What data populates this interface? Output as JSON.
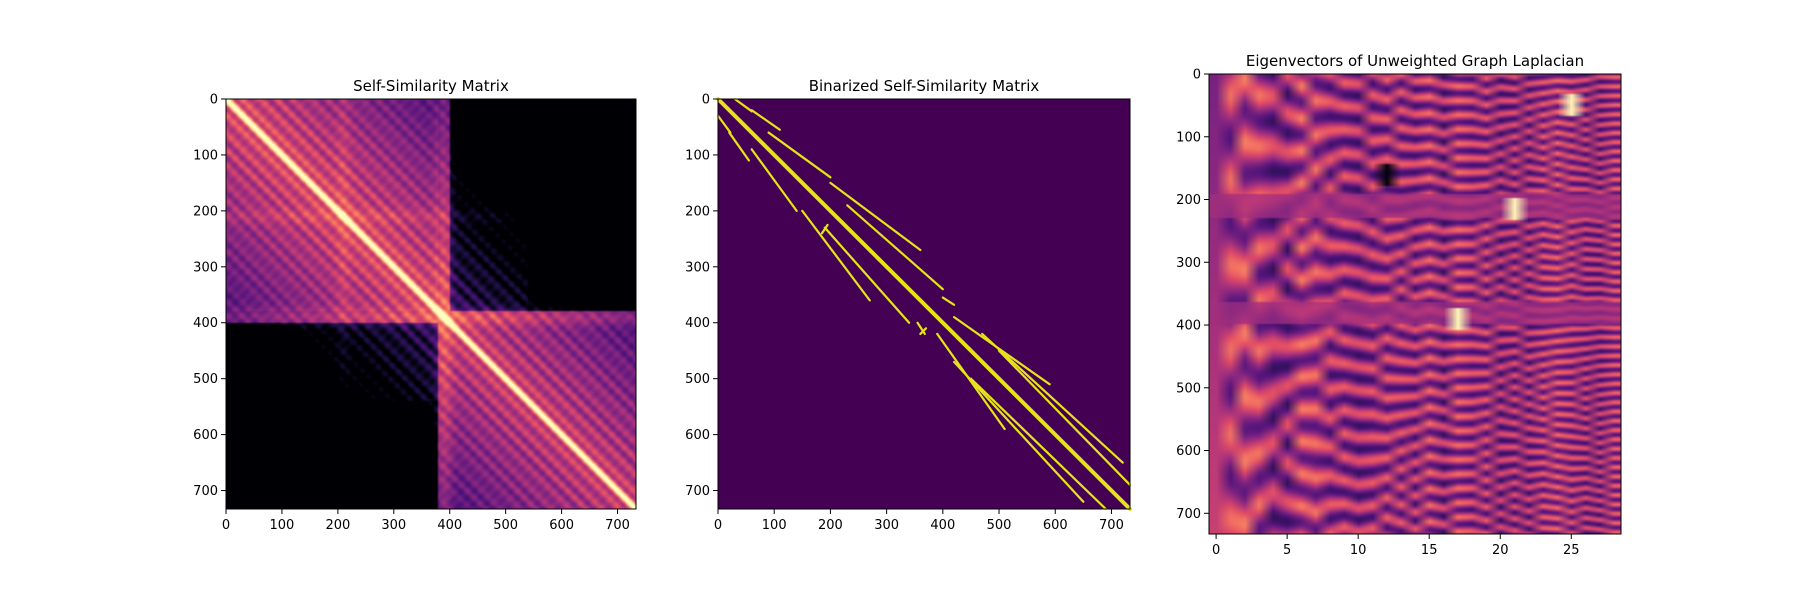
{
  "colors": {
    "magma": [
      "#000004",
      "#1c1044",
      "#4f127b",
      "#812581",
      "#b5367a",
      "#e55064",
      "#fb8761",
      "#fec287",
      "#fcfdbf"
    ],
    "binary_background": "#440154",
    "binary_foreground": "#e5e419",
    "axis": "#000000"
  },
  "chart_data": [
    {
      "type": "heatmap",
      "title": "Self-Similarity Matrix",
      "colormap": "magma",
      "size": 733,
      "xlim": [
        0,
        733
      ],
      "ylim": [
        733,
        0
      ],
      "x_ticks": [
        0,
        100,
        200,
        300,
        400,
        500,
        600,
        700
      ],
      "y_ticks": [
        0,
        100,
        200,
        300,
        400,
        500,
        600,
        700
      ],
      "x_tick_labels": [
        "0",
        "100",
        "200",
        "300",
        "400",
        "500",
        "600",
        "700"
      ],
      "y_tick_labels": [
        "0",
        "100",
        "200",
        "300",
        "400",
        "500",
        "600",
        "700"
      ],
      "xlabel": "",
      "ylabel": "",
      "structure": {
        "bright_diagonal": true,
        "secondary_diagonals_offsets": [
          -150,
          -110,
          -60,
          -30,
          30,
          60,
          110,
          150
        ],
        "bright_cross_at": 390,
        "dark_blocks": [
          {
            "rows": [
              0,
              380
            ],
            "cols": [
              400,
              733
            ]
          },
          {
            "rows": [
              400,
              733
            ],
            "cols": [
              0,
              380
            ]
          }
        ]
      }
    },
    {
      "type": "heatmap",
      "title": "Binarized Self-Similarity Matrix",
      "colormap": "viridis-binary",
      "size": 733,
      "xlim": [
        0,
        733
      ],
      "ylim": [
        733,
        0
      ],
      "x_ticks": [
        0,
        100,
        200,
        300,
        400,
        500,
        600,
        700
      ],
      "y_ticks": [
        0,
        100,
        200,
        300,
        400,
        500,
        600,
        700
      ],
      "x_tick_labels": [
        "0",
        "100",
        "200",
        "300",
        "400",
        "500",
        "600",
        "700"
      ],
      "y_tick_labels": [
        "0",
        "100",
        "200",
        "300",
        "400",
        "500",
        "600",
        "700"
      ],
      "xlabel": "",
      "ylabel": "",
      "structure": {
        "main_diagonal": [
          [
            0,
            0
          ],
          [
            733,
            733
          ]
        ],
        "off_diagonal_segments": [
          [
            [
              30,
              0
            ],
            [
              60,
              22
            ]
          ],
          [
            [
              60,
              20
            ],
            [
              110,
              55
            ]
          ],
          [
            [
              90,
              60
            ],
            [
              145,
              100
            ]
          ],
          [
            [
              145,
              100
            ],
            [
              200,
              140
            ]
          ],
          [
            [
              200,
              150
            ],
            [
              360,
              270
            ]
          ],
          [
            [
              230,
              190
            ],
            [
              400,
              340
            ]
          ],
          [
            [
              400,
              355
            ],
            [
              420,
              368
            ]
          ],
          [
            [
              420,
              390
            ],
            [
              590,
              510
            ]
          ],
          [
            [
              470,
              420
            ],
            [
              720,
              650
            ]
          ],
          [
            [
              500,
              450
            ],
            [
              733,
              690
            ]
          ],
          [
            [
              0,
              30
            ],
            [
              22,
              60
            ]
          ],
          [
            [
              20,
              60
            ],
            [
              55,
              110
            ]
          ],
          [
            [
              60,
              90
            ],
            [
              100,
              145
            ]
          ],
          [
            [
              100,
              145
            ],
            [
              140,
              200
            ]
          ],
          [
            [
              150,
              200
            ],
            [
              270,
              360
            ]
          ],
          [
            [
              190,
              230
            ],
            [
              340,
              400
            ]
          ],
          [
            [
              355,
              400
            ],
            [
              368,
              420
            ]
          ],
          [
            [
              390,
              420
            ],
            [
              510,
              590
            ]
          ],
          [
            [
              420,
              470
            ],
            [
              650,
              720
            ]
          ],
          [
            [
              450,
              500
            ],
            [
              690,
              733
            ]
          ],
          [
            [
              185,
              240
            ],
            [
              195,
              225
            ]
          ],
          [
            [
              360,
              420
            ],
            [
              370,
              410
            ]
          ]
        ]
      }
    },
    {
      "type": "heatmap",
      "title": "Eigenvectors of Unweighted Graph Laplacian",
      "colormap": "magma",
      "columns": 29,
      "rows": 733,
      "xlim": [
        -0.5,
        28.5
      ],
      "ylim": [
        733,
        0
      ],
      "x_ticks": [
        0,
        5,
        10,
        15,
        20,
        25
      ],
      "y_ticks": [
        0,
        100,
        200,
        300,
        400,
        500,
        600,
        700
      ],
      "x_tick_labels": [
        "0",
        "5",
        "10",
        "15",
        "20",
        "25"
      ],
      "y_tick_labels": [
        "0",
        "100",
        "200",
        "300",
        "400",
        "500",
        "600",
        "700"
      ],
      "xlabel": "",
      "ylabel": "",
      "structure": {
        "horizontal_bands_at": [
          210,
          380
        ],
        "hot_spots": [
          {
            "col": 12,
            "row": 160,
            "value": "dark"
          },
          {
            "col": 21,
            "row": 215,
            "value": "bright"
          },
          {
            "col": 17,
            "row": 390,
            "value": "bright"
          },
          {
            "col": 25,
            "row": 50,
            "value": "bright"
          }
        ]
      }
    }
  ]
}
